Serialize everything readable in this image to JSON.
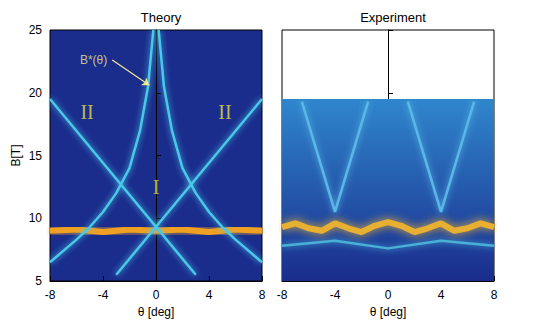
{
  "chart_data": [
    {
      "type": "line",
      "title": "Theory",
      "x_label": "θ [deg]",
      "y_label": "B[T]",
      "xlim": [
        -8,
        8
      ],
      "xticks": [
        -8,
        -4,
        0,
        4,
        8
      ],
      "ylim": [
        5,
        25
      ],
      "yticks": [
        5,
        10,
        15,
        20,
        25
      ],
      "tick_labels": true,
      "series": [
        {
          "color": "#f0a020",
          "x": [
            -8,
            -6,
            -4,
            -2,
            0,
            2,
            4,
            6,
            8
          ],
          "values": [
            9,
            9.1,
            8.9,
            9.1,
            9,
            9.1,
            8.9,
            9.1,
            9
          ]
        },
        {
          "color": "#48c8e8",
          "x": [
            -8,
            -6,
            -5,
            -4,
            -3,
            -2,
            -1.2,
            -0.6,
            -0.2
          ],
          "values": [
            6.5,
            8.3,
            9.3,
            10.5,
            12,
            14,
            17,
            20.5,
            25
          ]
        },
        {
          "color": "#48c8e8",
          "x": [
            0.2,
            0.6,
            1.2,
            2,
            3,
            4,
            5,
            6,
            8
          ],
          "values": [
            25,
            20.5,
            17,
            14,
            12,
            10.5,
            9.3,
            8.3,
            6.5
          ]
        },
        {
          "color": "#48c8e8",
          "x": [
            -8,
            3
          ],
          "values": [
            19.5,
            5.5
          ]
        },
        {
          "color": "#48c8e8",
          "x": [
            8,
            -3
          ],
          "values": [
            19.5,
            5.5
          ]
        }
      ],
      "annotations": [
        {
          "text": "B*(θ)",
          "x": -3.3,
          "y": 22.6,
          "arrow_to": [
            -0.5,
            20.6
          ]
        },
        {
          "text": "II",
          "x": -5.2,
          "y": 18.5
        },
        {
          "text": "II",
          "x": 5.2,
          "y": 18.5
        },
        {
          "text": "I",
          "x": 0,
          "y": 12.5
        }
      ]
    },
    {
      "type": "line",
      "title": "Experiment",
      "x_label": "θ [deg]",
      "xlim": [
        -8,
        8
      ],
      "xticks": [
        -8,
        -4,
        0,
        4,
        8
      ],
      "ylim": [
        5,
        25
      ],
      "yticks": [
        5,
        10,
        15,
        20,
        25
      ],
      "data_ylim": [
        5,
        19.5
      ],
      "tick_labels": "x",
      "series": [
        {
          "color": "#48b0d8",
          "x": [
            -8,
            -4,
            0,
            4,
            8
          ],
          "values": [
            7.8,
            8.2,
            7.6,
            8.2,
            7.8
          ]
        },
        {
          "color": "#e8b030",
          "x": [
            -8,
            -7,
            -6,
            -5,
            -4,
            -3,
            -2,
            -1,
            0,
            1,
            2,
            3,
            4,
            5,
            6,
            7,
            8
          ],
          "values": [
            9.3,
            9.6,
            9.2,
            9.0,
            9.6,
            9.2,
            8.9,
            9.4,
            9.7,
            9.4,
            8.9,
            9.2,
            9.6,
            9.0,
            9.2,
            9.6,
            9.3
          ]
        },
        {
          "color": "#5ab8e8",
          "x": [
            -6.5,
            -4,
            -1.5
          ],
          "values": [
            19.3,
            10.5,
            19.3
          ]
        },
        {
          "color": "#5ab8e8",
          "x": [
            1.5,
            4,
            6.5
          ],
          "values": [
            19.3,
            10.5,
            19.3
          ]
        }
      ]
    }
  ]
}
